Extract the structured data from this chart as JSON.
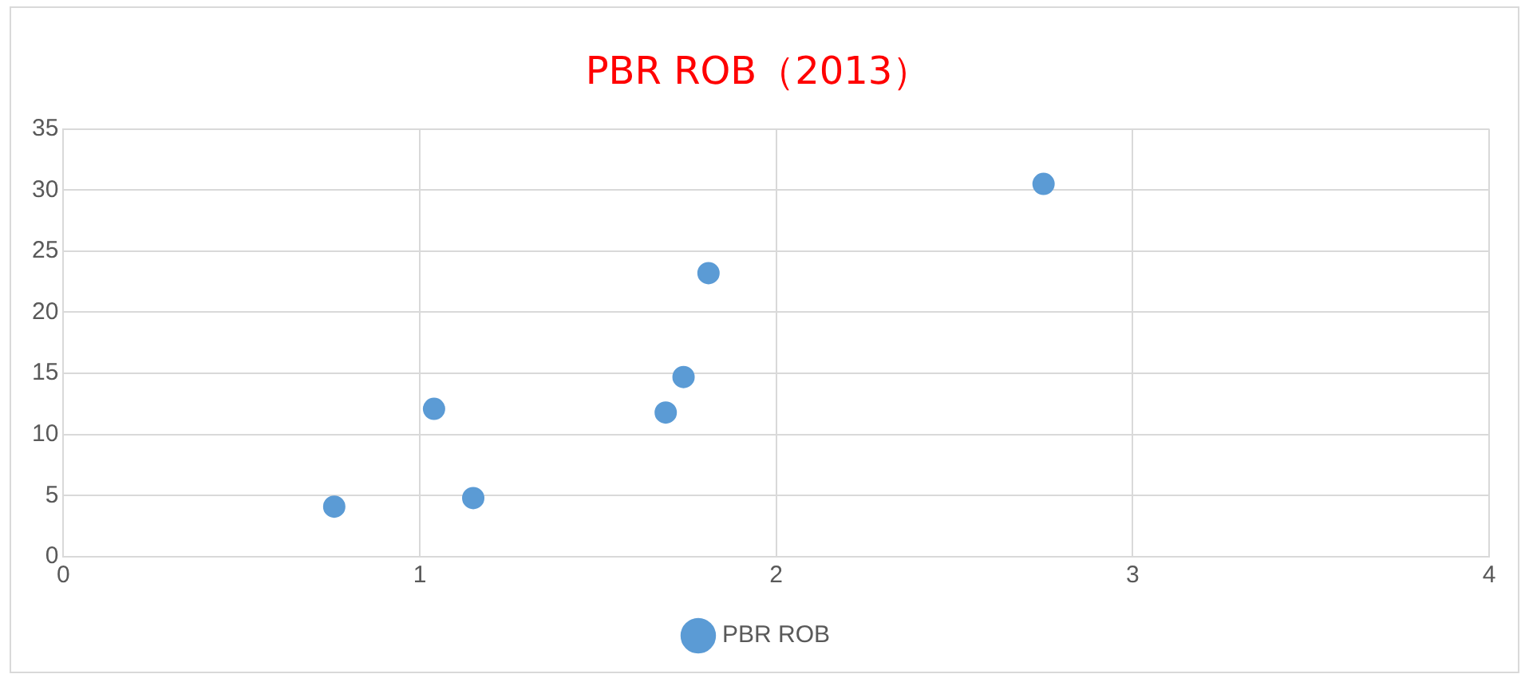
{
  "chart_data": {
    "type": "scatter",
    "title": "PBR ROB（2013）",
    "xlim": [
      0,
      4
    ],
    "xticks": [
      0,
      1,
      2,
      3,
      4
    ],
    "ylim": [
      0,
      35
    ],
    "yticks": [
      0,
      5,
      10,
      15,
      20,
      25,
      30,
      35
    ],
    "grid": true,
    "legend": "bottom",
    "marker": "circle",
    "series": [
      {
        "name": "PBR ROB",
        "color": "#5b9bd5",
        "x": [
          0.76,
          1.04,
          1.15,
          1.69,
          1.74,
          1.81,
          2.75
        ],
        "values": [
          4.1,
          12.1,
          4.8,
          11.8,
          14.7,
          23.2,
          30.5
        ]
      }
    ]
  }
}
